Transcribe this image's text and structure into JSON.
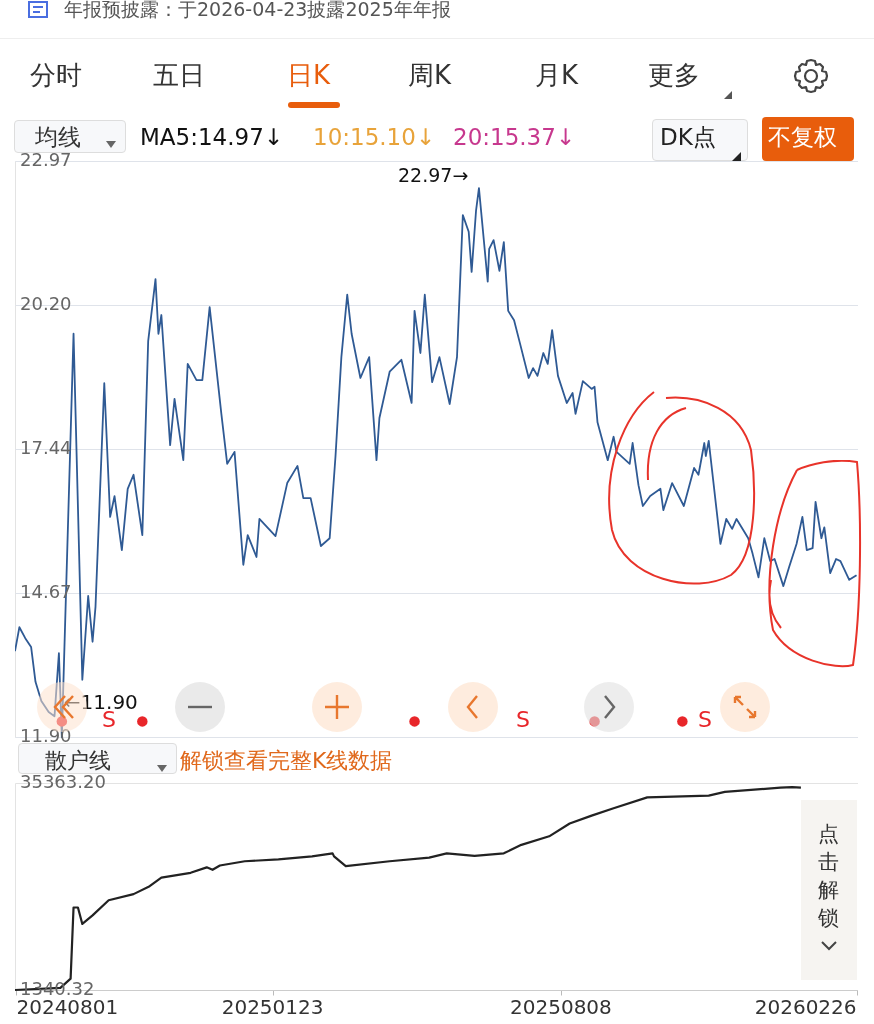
{
  "chart_data": [
    {
      "type": "line",
      "annotations": [
        "年报预披露：于2026-04-23披露2025年年报",
        "分时",
        "五日",
        "日K",
        "周K",
        "月K",
        "更多",
        "均线",
        "MA5:14.97↓",
        "10:15.10↓",
        "20:15.37↓",
        "DK点",
        "不复权",
        "22.97→",
        "S",
        "S",
        "S",
        {
          "text": "←11.90",
          "x": "2024-09-01",
          "y": 11.9
        }
      ],
      "series": [
        {
          "color": "#2f5a94",
          "x": [
            "2024-07-31",
            "2024-08-03",
            "2024-08-07",
            "2024-08-11",
            "2024-08-14",
            "2024-08-18",
            "2024-08-23",
            "2024-08-27",
            "2024-08-30",
            "2024-09-01",
            "2024-09-09",
            "2024-09-15",
            "2024-09-19",
            "2024-09-22",
            "2024-09-24",
            "2024-09-30",
            "2024-10-04",
            "2024-10-07",
            "2024-10-12",
            "2024-10-16",
            "2024-10-20",
            "2024-10-26",
            "2024-10-30",
            "2024-11-04",
            "2024-11-06",
            "2024-11-08",
            "2024-11-14",
            "2024-11-17",
            "2024-11-23",
            "2024-11-26",
            "2024-12-02",
            "2024-12-06",
            "2024-12-11",
            "2024-12-19",
            "2024-12-23",
            "2024-12-28",
            "2025-01-03",
            "2025-01-06",
            "2025-01-12",
            "2025-01-14",
            "2025-01-25",
            "2025-02-02",
            "2025-02-09",
            "2025-02-13",
            "2025-02-18",
            "2025-02-25",
            "2025-03-03",
            "2025-03-07",
            "2025-03-11",
            "2025-03-15",
            "2025-03-18",
            "2025-03-24",
            "2025-03-30",
            "2025-04-04",
            "2025-04-06",
            "2025-04-13",
            "2025-04-21",
            "2025-04-28",
            "2025-04-30",
            "2025-05-04",
            "2025-05-07",
            "2025-05-12",
            "2025-05-17",
            "2025-05-24",
            "2025-05-29",
            "2025-06-02",
            "2025-06-06",
            "2025-06-08",
            "2025-06-11",
            "2025-06-13",
            "2025-06-19",
            "2025-06-20",
            "2025-06-23",
            "2025-06-27",
            "2025-06-30",
            "2025-07-03",
            "2025-07-07",
            "2025-07-11",
            "2025-07-17",
            "2025-07-20",
            "2025-07-23",
            "2025-07-27",
            "2025-07-30",
            "2025-08-02",
            "2025-08-06",
            "2025-08-12",
            "2025-08-16",
            "2025-08-18",
            "2025-08-23",
            "2025-08-29",
            "2025-08-31",
            "2025-09-02",
            "2025-09-09",
            "2025-09-13",
            "2025-09-15",
            "2025-09-24",
            "2025-09-26",
            "2025-09-30",
            "2025-10-03",
            "2025-10-08",
            "2025-10-15",
            "2025-10-17",
            "2025-10-23",
            "2025-10-31",
            "2025-11-07",
            "2025-11-10",
            "2025-11-14",
            "2025-11-15",
            "2025-11-17",
            "2025-11-25",
            "2025-11-29",
            "2025-12-03",
            "2025-12-06",
            "2025-12-11",
            "2025-12-14",
            "2025-12-17",
            "2025-12-21",
            "2025-12-25",
            "2025-12-29",
            "2026-01-01",
            "2026-01-07",
            "2026-01-11",
            "2026-01-16",
            "2026-01-20",
            "2026-01-23",
            "2026-01-27",
            "2026-01-29",
            "2026-02-02",
            "2026-02-04",
            "2026-02-08",
            "2026-02-12",
            "2026-02-15",
            "2026-02-21",
            "2026-02-26"
          ],
          "values": [
            13.55,
            14.01,
            13.8,
            13.63,
            12.96,
            12.59,
            12.38,
            12.3,
            13.51,
            11.9,
            19.65,
            13.0,
            14.61,
            13.73,
            14.4,
            18.7,
            16.13,
            16.53,
            15.49,
            16.67,
            16.94,
            15.78,
            19.51,
            20.7,
            19.65,
            20.01,
            17.51,
            18.4,
            17.22,
            19.07,
            18.76,
            18.76,
            20.16,
            18.11,
            17.15,
            17.38,
            15.21,
            15.78,
            15.36,
            16.09,
            15.76,
            16.78,
            17.11,
            16.49,
            16.49,
            15.57,
            15.72,
            17.3,
            19.2,
            20.4,
            19.65,
            18.8,
            19.2,
            17.22,
            18.03,
            18.92,
            19.15,
            18.32,
            20.09,
            19.28,
            20.4,
            18.72,
            19.2,
            18.3,
            19.2,
            21.93,
            21.61,
            20.84,
            22.01,
            22.45,
            20.65,
            21.28,
            21.45,
            20.86,
            21.41,
            20.09,
            19.91,
            19.47,
            18.8,
            18.99,
            18.84,
            19.28,
            19.07,
            19.72,
            18.84,
            18.32,
            18.51,
            18.11,
            18.74,
            18.59,
            18.63,
            17.95,
            17.22,
            17.67,
            17.38,
            17.15,
            17.55,
            16.74,
            16.34,
            16.53,
            16.67,
            16.26,
            16.78,
            16.34,
            17.07,
            16.94,
            17.55,
            17.3,
            17.59,
            15.61,
            16.09,
            15.9,
            16.09,
            15.86,
            15.72,
            15.42,
            14.97,
            15.72,
            15.28,
            15.32,
            14.8,
            15.17,
            15.61,
            16.13,
            15.49,
            15.53,
            16.42,
            15.72,
            15.93,
            15.05,
            15.32,
            15.28,
            14.92,
            15.01
          ]
        },
        {
          "type": "scatter",
          "color": "#e8262a",
          "x": [
            "2024-09-01",
            "2024-10-26",
            "2025-04-30",
            "2025-08-31",
            "2025-10-30"
          ],
          "values": [
            12.2,
            12.2,
            12.2,
            12.2,
            12.2
          ]
        }
      ],
      "xlim": [
        "2024-07-31",
        "2026-02-27"
      ],
      "ylim": [
        11.9,
        22.97
      ],
      "yticks": [
        {
          "value": 11.9,
          "label": "11.90"
        },
        14.67,
        17.44,
        {
          "value": 20.2,
          "label": "20.20"
        },
        22.97
      ],
      "grid": "y",
      "tick_labels": "y"
    },
    {
      "type": "line",
      "annotations": [
        "散户线",
        "解锁查看完整K线数据",
        "点击解锁"
      ],
      "series": [
        {
          "color": "#222222",
          "x": [
            "2024-07-31",
            "2024-08-31",
            "2024-09-07",
            "2024-09-09",
            "2024-09-12",
            "2024-09-15",
            "2024-09-22",
            "2024-10-03",
            "2024-10-20",
            "2024-10-31",
            "2024-11-08",
            "2024-11-28",
            "2024-12-09",
            "2024-12-13",
            "2024-12-18",
            "2025-01-04",
            "2025-01-27",
            "2025-02-19",
            "2025-03-05",
            "2025-03-06",
            "2025-03-14",
            "2025-04-13",
            "2025-05-10",
            "2025-05-22",
            "2025-06-10",
            "2025-06-30",
            "2025-07-12",
            "2025-07-31",
            "2025-08-14",
            "2025-08-29",
            "2025-09-13",
            "2025-10-06",
            "2025-11-17",
            "2025-11-28",
            "2026-01-05",
            "2026-01-13",
            "2026-01-19"
          ],
          "values": [
            1340.32,
            1700,
            3200,
            14900,
            14900,
            12200,
            13600,
            16100,
            17100,
            18400,
            19800,
            20600,
            21500,
            21100,
            21800,
            22500,
            22800,
            23300,
            23800,
            23300,
            21700,
            22500,
            23100,
            23800,
            23400,
            23800,
            25200,
            26600,
            28700,
            30000,
            31200,
            33000,
            33300,
            33900,
            34600,
            34700,
            34600
          ]
        }
      ],
      "xlim": [
        "2024-07-31",
        "2026-02-27"
      ],
      "xticks": [
        {
          "value": "2024-08-01",
          "label": "20240801"
        },
        {
          "value": "2025-01-23",
          "label": "20250123"
        },
        {
          "value": "2025-08-08",
          "label": "20250808"
        },
        {
          "value": "2026-02-26",
          "label": "20260226"
        }
      ],
      "ylim": [
        1340.32,
        35363.2
      ],
      "yticks": [
        {
          "value": 1340.32,
          "label": "1340.32"
        },
        {
          "value": 35363.2,
          "label": "35363.20"
        }
      ]
    }
  ]
}
